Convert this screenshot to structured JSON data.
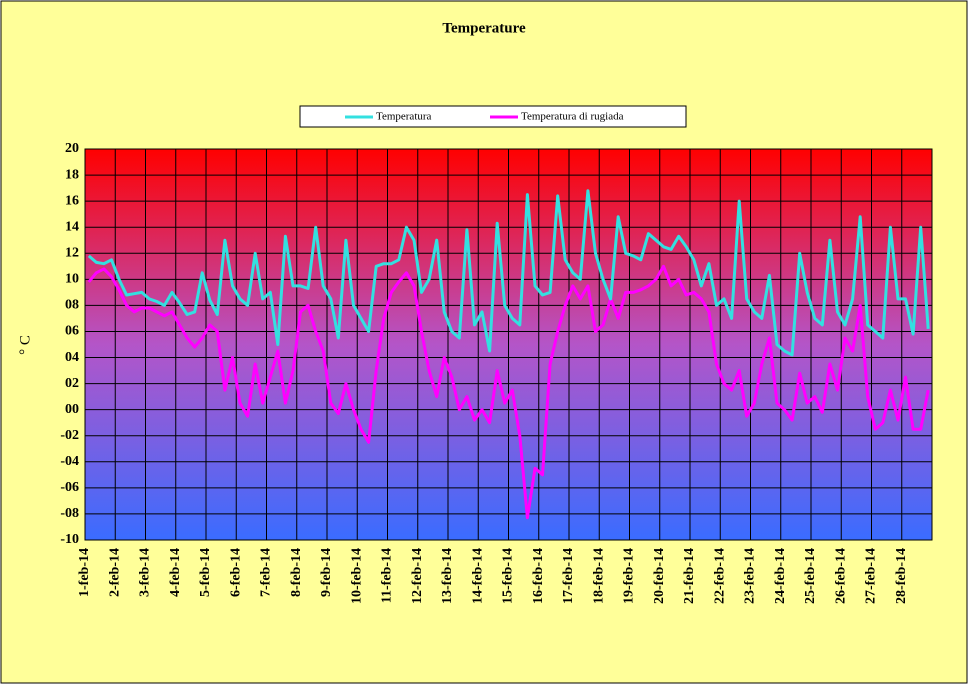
{
  "chart_data": {
    "type": "line",
    "title": "Temperature",
    "y_label": "° C",
    "categories": [
      "1-feb-14",
      null,
      null,
      null,
      "2-feb-14",
      null,
      null,
      null,
      "3-feb-14",
      null,
      null,
      null,
      "4-feb-14",
      null,
      null,
      null,
      "5-feb-14",
      null,
      null,
      null,
      "6-feb-14",
      null,
      null,
      null,
      "7-feb-14",
      null,
      null,
      null,
      "8-feb-14",
      null,
      null,
      null,
      "9-feb-14",
      null,
      null,
      null,
      "10-feb-14",
      null,
      null,
      null,
      "11-feb-14",
      null,
      null,
      null,
      "12-feb-14",
      null,
      null,
      null,
      "13-feb-14",
      null,
      null,
      null,
      "14-feb-14",
      null,
      null,
      null,
      "15-feb-14",
      null,
      null,
      null,
      "16-feb-14",
      null,
      null,
      null,
      "17-feb-14",
      null,
      null,
      null,
      "18-feb-14",
      null,
      null,
      null,
      "19-feb-14",
      null,
      null,
      null,
      "20-feb-14",
      null,
      null,
      null,
      "21-feb-14",
      null,
      null,
      null,
      "22-feb-14",
      null,
      null,
      null,
      "23-feb-14",
      null,
      null,
      null,
      "24-feb-14",
      null,
      null,
      null,
      "25-feb-14",
      null,
      null,
      null,
      "26-feb-14",
      null,
      null,
      null,
      "27-feb-14",
      null,
      null,
      null,
      "28-feb-14",
      null,
      null,
      null
    ],
    "series": [
      {
        "name": "Temperatura",
        "color": "#33e0e0",
        "values": [
          11.8,
          11.3,
          11.2,
          11.5,
          10,
          8.8,
          8.9,
          9.0,
          8.5,
          8.3,
          8.0,
          9.0,
          8.2,
          7.3,
          7.5,
          10.5,
          8.4,
          7.3,
          13.0,
          9.5,
          8.5,
          8.0,
          12.0,
          8.5,
          9.0,
          5.0,
          13.3,
          9.5,
          9.5,
          9.3,
          14.0,
          9.5,
          8.5,
          5.5,
          13.0,
          8.0,
          7.0,
          6.0,
          11.0,
          11.2,
          11.2,
          11.5,
          14.0,
          13.0,
          9.0,
          10.0,
          13.0,
          7.5,
          6.0,
          5.5,
          13.8,
          6.5,
          7.5,
          4.5,
          14.3,
          8.0,
          7.0,
          6.5,
          16.5,
          9.5,
          8.8,
          9.0,
          16.4,
          11.5,
          10.5,
          10.0,
          16.8,
          12.0,
          10.0,
          8.5,
          14.8,
          12.0,
          11.8,
          11.5,
          13.5,
          13.0,
          12.5,
          12.3,
          13.3,
          12.5,
          11.5,
          9.5,
          11.2,
          8.0,
          8.5,
          7.0,
          16.0,
          8.5,
          7.5,
          7.0,
          10.3,
          5.0,
          4.5,
          4.2,
          12.0,
          9.0,
          7.0,
          6.5,
          13.0,
          7.5,
          6.5,
          8.5,
          14.8,
          6.5,
          6.0,
          5.5,
          14.0,
          8.5,
          8.5,
          5.8,
          14.0,
          6.2
        ]
      },
      {
        "name": "Temperatura di rugiada",
        "color": "#ff00ff",
        "values": [
          9.8,
          10.5,
          10.8,
          10.2,
          9.2,
          8.0,
          7.5,
          7.8,
          7.8,
          7.5,
          7.2,
          7.5,
          6.5,
          5.5,
          4.8,
          5.5,
          6.5,
          6.0,
          1.5,
          4.0,
          0.5,
          -0.5,
          3.5,
          0.5,
          2.5,
          4.5,
          0.5,
          3.0,
          7.5,
          8.0,
          6.0,
          4.5,
          0.5,
          -0.3,
          2.0,
          0,
          -1.5,
          -2.5,
          3.0,
          7.0,
          9.0,
          9.8,
          10.5,
          9.5,
          6.0,
          3.0,
          1.0,
          4.0,
          2.5,
          0.0,
          1.0,
          -0.8,
          0.0,
          -1.0,
          3.0,
          0.5,
          1.5,
          -2.0,
          -8.3,
          -4.5,
          -5.0,
          3.5,
          6.0,
          8.0,
          9.5,
          8.5,
          9.5,
          6.0,
          6.5,
          8.5,
          7.0,
          9.0,
          9.0,
          9.2,
          9.5,
          10.0,
          11.0,
          9.5,
          10.0,
          8.8,
          9.0,
          8.5,
          7.5,
          3.5,
          2.0,
          1.5,
          3.0,
          -0.5,
          0.5,
          3.5,
          5.5,
          0.5,
          0,
          -0.8,
          2.8,
          0.5,
          1.0,
          -0.2,
          3.5,
          1.5,
          5.5,
          4.5,
          8.0,
          1.0,
          -1.5,
          -1.0,
          1.5,
          -0.8,
          2.5,
          -1.5,
          -1.5,
          1.5
        ]
      }
    ],
    "ylim": [
      -10,
      20
    ],
    "yticks": [
      -10,
      {
        "value": -8,
        "label": "-08"
      },
      {
        "value": -6,
        "label": "-06"
      },
      {
        "value": -4,
        "label": "-04"
      },
      {
        "value": -2,
        "label": "-02"
      },
      {
        "value": 0,
        "label": "00"
      },
      {
        "value": 2,
        "label": "02"
      },
      {
        "value": 4,
        "label": "04"
      },
      {
        "value": 6,
        "label": "06"
      },
      {
        "value": 8,
        "label": "08"
      },
      10,
      12,
      14,
      16,
      18,
      20
    ],
    "grid": true,
    "legend": "top"
  }
}
